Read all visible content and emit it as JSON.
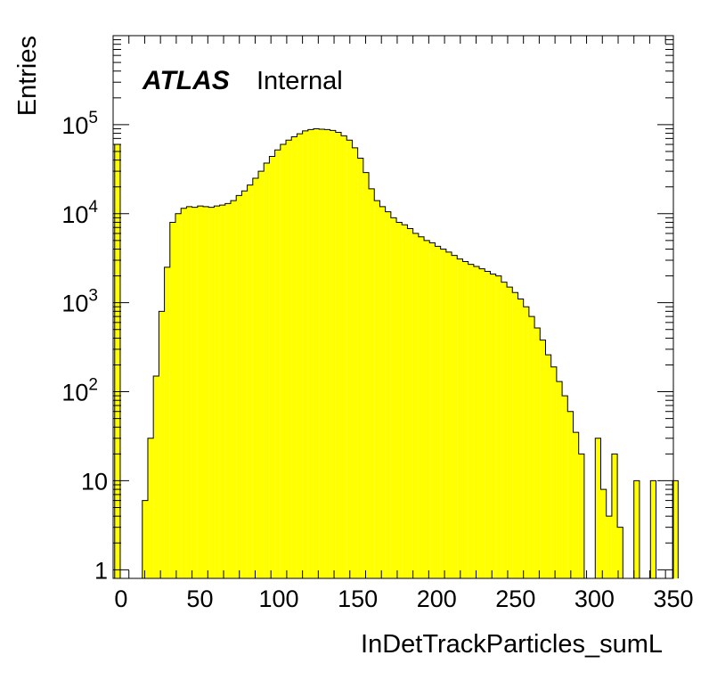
{
  "chart_data": {
    "type": "bar",
    "style": "histogram",
    "fill_color": "#ffff00",
    "edge_color": "#000000",
    "xlabel": "InDetTrackParticles_sumL",
    "ylabel": "Entries",
    "annotation": {
      "experiment": "ATLAS",
      "status": "Internal"
    },
    "x_range": [
      -5,
      350
    ],
    "y_range": [
      0.8,
      1000000
    ],
    "log_y": true,
    "bin_width": 3.5,
    "bin_edges_start": -4,
    "x_ticks": [
      "0",
      "50",
      "100",
      "150",
      "200",
      "250",
      "300",
      "350"
    ],
    "y_ticks": [
      {
        "value": 1,
        "base": "1",
        "exp": ""
      },
      {
        "value": 10,
        "base": "10",
        "exp": ""
      },
      {
        "value": 100,
        "base": "10",
        "exp": "2"
      },
      {
        "value": 1000,
        "base": "10",
        "exp": "3"
      },
      {
        "value": 10000,
        "base": "10",
        "exp": "4"
      },
      {
        "value": 100000,
        "base": "10",
        "exp": "5"
      }
    ],
    "values": [
      60000,
      0,
      0,
      0,
      0,
      6,
      30,
      150,
      800,
      2500,
      8000,
      10000,
      11500,
      12000,
      11800,
      12200,
      12000,
      11800,
      12200,
      12500,
      13000,
      14000,
      16000,
      18000,
      21000,
      25000,
      30000,
      37000,
      44000,
      52000,
      60000,
      67000,
      73000,
      79000,
      85000,
      88000,
      90000,
      89000,
      88000,
      86000,
      82000,
      75000,
      67000,
      55000,
      42000,
      29000,
      19000,
      14000,
      12000,
      10500,
      9000,
      8000,
      7500,
      6800,
      6000,
      5500,
      5000,
      4700,
      4300,
      4000,
      3700,
      3400,
      3100,
      2900,
      2700,
      2550,
      2400,
      2250,
      2100,
      2000,
      1700,
      1500,
      1300,
      1100,
      900,
      700,
      520,
      380,
      260,
      190,
      130,
      90,
      60,
      35,
      20,
      0,
      0,
      30,
      8,
      4,
      20,
      3,
      0,
      0,
      10,
      0,
      0,
      10,
      0,
      0,
      0,
      10
    ]
  }
}
